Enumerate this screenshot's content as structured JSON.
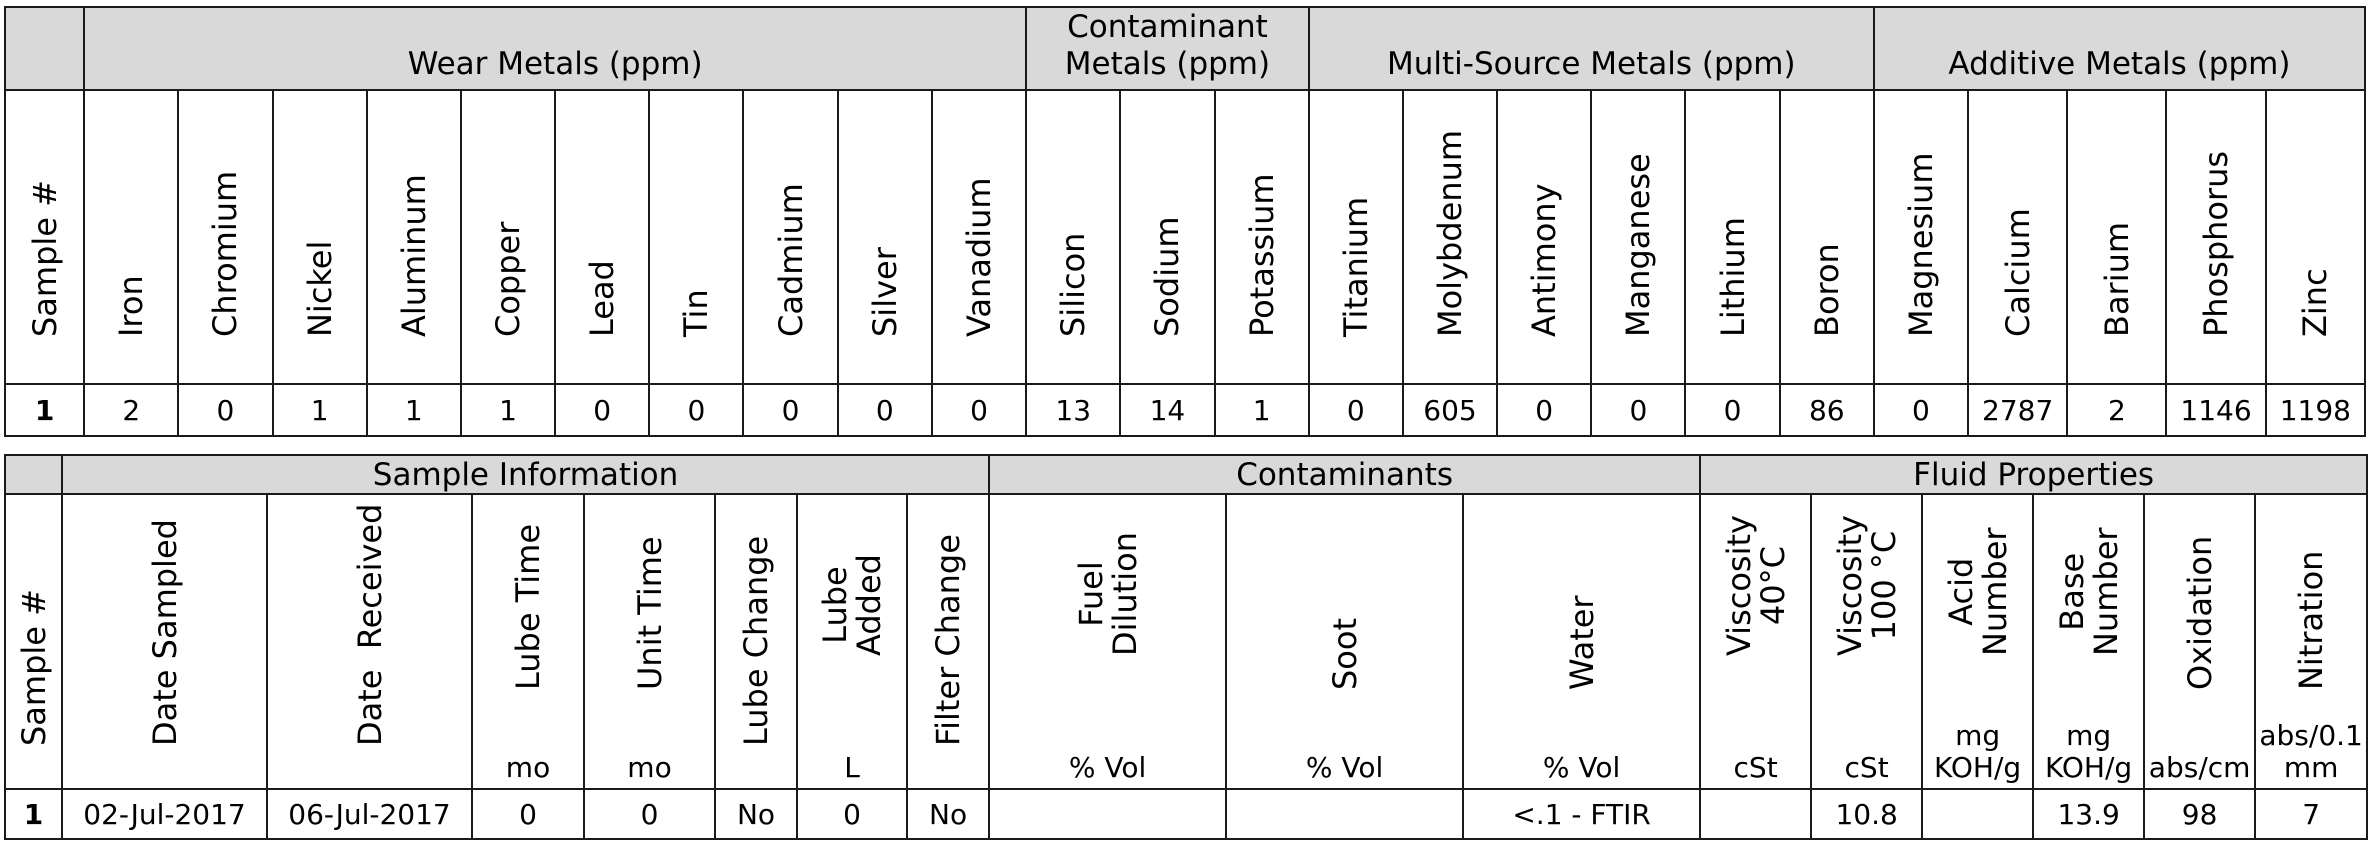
{
  "metals": {
    "sample_header": "Sample #",
    "groups": [
      "Wear Metals (ppm)",
      "Contaminant Metals (ppm)",
      "Multi-Source Metals (ppm)",
      "Additive Metals (ppm)"
    ],
    "group_line1": [
      "",
      "Contaminant",
      "",
      ""
    ],
    "group_line2": [
      "Wear Metals (ppm)",
      "Metals (ppm)",
      "Multi-Source Metals (ppm)",
      "Additive Metals (ppm)"
    ],
    "columns": [
      "Iron",
      "Chromium",
      "Nickel",
      "Aluminum",
      "Copper",
      "Lead",
      "Tin",
      "Cadmium",
      "Silver",
      "Vanadium",
      "Silicon",
      "Sodium",
      "Potassium",
      "Titanium",
      "Molybdenum",
      "Antimony",
      "Manganese",
      "Lithium",
      "Boron",
      "Magnesium",
      "Calcium",
      "Barium",
      "Phosphorus",
      "Zinc"
    ],
    "row": {
      "sample": "1",
      "values": [
        "2",
        "0",
        "1",
        "1",
        "1",
        "0",
        "0",
        "0",
        "0",
        "0",
        "13",
        "14",
        "1",
        "0",
        "605",
        "0",
        "0",
        "0",
        "86",
        "0",
        "2787",
        "2",
        "1146",
        "1198"
      ]
    }
  },
  "info": {
    "sample_header": "Sample #",
    "groups": [
      "Sample Information",
      "Contaminants",
      "Fluid Properties"
    ],
    "columns": [
      {
        "name": "Date Sampled",
        "unit": ""
      },
      {
        "name": "Date  Received",
        "unit": ""
      },
      {
        "name": "Lube Time",
        "unit": "mo"
      },
      {
        "name": "Unit Time",
        "unit": "mo"
      },
      {
        "name": "Lube Change",
        "unit": ""
      },
      {
        "name": "Lube\nAdded",
        "unit": "L"
      },
      {
        "name": "Filter Change",
        "unit": ""
      },
      {
        "name": "Fuel\nDilution",
        "unit": "% Vol"
      },
      {
        "name": "Soot",
        "unit": "% Vol"
      },
      {
        "name": "Water",
        "unit": "% Vol"
      },
      {
        "name": "Viscosity\n40°C",
        "unit": "cSt"
      },
      {
        "name": "Viscosity\n100 °C",
        "unit": "cSt"
      },
      {
        "name": "Acid\nNumber",
        "unit": "mg\nKOH/g"
      },
      {
        "name": "Base\nNumber",
        "unit": "mg\nKOH/g"
      },
      {
        "name": "Oxidation",
        "unit": "abs/cm"
      },
      {
        "name": "Nitration",
        "unit": "abs/0.1\nmm"
      }
    ],
    "row": {
      "sample": "1",
      "values": [
        "02-Jul-2017",
        "06-Jul-2017",
        "0",
        "0",
        "No",
        "0",
        "No",
        "",
        "",
        "<.1 - FTIR",
        "",
        "10.8",
        "",
        "13.9",
        "98",
        "7"
      ]
    }
  }
}
